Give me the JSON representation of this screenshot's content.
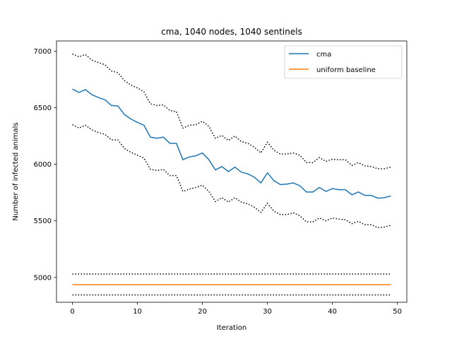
{
  "chart_data": {
    "type": "line",
    "title": "cma, 1040 nodes, 1040 sentinels",
    "xlabel": "Iteration",
    "ylabel": "Number of infected animals",
    "xlim": [
      -2.45,
      51.45
    ],
    "ylim": [
      4780,
      7090
    ],
    "x_ticks": [
      0,
      10,
      20,
      30,
      40,
      50
    ],
    "y_ticks": [
      5000,
      5500,
      6000,
      6500,
      7000
    ],
    "grid": false,
    "legend_position": "top-right",
    "x": [
      0,
      1,
      2,
      3,
      4,
      5,
      6,
      7,
      8,
      9,
      10,
      11,
      12,
      13,
      14,
      15,
      16,
      17,
      18,
      19,
      20,
      21,
      22,
      23,
      24,
      25,
      26,
      27,
      28,
      29,
      30,
      31,
      32,
      33,
      34,
      35,
      36,
      37,
      38,
      39,
      40,
      41,
      42,
      43,
      44,
      45,
      46,
      47,
      48,
      49
    ],
    "series": [
      {
        "name": "cma",
        "color": "#1f77b4",
        "style": "solid",
        "values": [
          6665,
          6635,
          6660,
          6615,
          6590,
          6570,
          6520,
          6515,
          6440,
          6400,
          6370,
          6345,
          6240,
          6230,
          6240,
          6185,
          6185,
          6040,
          6065,
          6075,
          6100,
          6040,
          5950,
          5980,
          5935,
          5975,
          5930,
          5915,
          5885,
          5835,
          5925,
          5855,
          5820,
          5825,
          5835,
          5810,
          5755,
          5755,
          5795,
          5760,
          5785,
          5775,
          5775,
          5730,
          5755,
          5725,
          5725,
          5700,
          5705,
          5720
        ]
      },
      {
        "name": "",
        "color": "#000000",
        "style": "dotted",
        "values": [
          6975,
          6950,
          6970,
          6920,
          6900,
          6880,
          6825,
          6810,
          6740,
          6700,
          6675,
          6640,
          6535,
          6520,
          6525,
          6475,
          6465,
          6320,
          6345,
          6350,
          6380,
          6335,
          6230,
          6255,
          6210,
          6250,
          6200,
          6185,
          6150,
          6100,
          6195,
          6125,
          6090,
          6090,
          6100,
          6080,
          6015,
          6015,
          6060,
          6025,
          6045,
          6040,
          6040,
          5990,
          6015,
          5985,
          5980,
          5960,
          5960,
          5975
        ]
      },
      {
        "name": "",
        "color": "#000000",
        "style": "dotted",
        "values": [
          6350,
          6320,
          6345,
          6305,
          6280,
          6265,
          6215,
          6215,
          6140,
          6105,
          6080,
          6055,
          5955,
          5945,
          5955,
          5900,
          5900,
          5760,
          5780,
          5795,
          5815,
          5760,
          5670,
          5705,
          5665,
          5705,
          5665,
          5650,
          5620,
          5575,
          5655,
          5585,
          5555,
          5555,
          5570,
          5545,
          5490,
          5490,
          5525,
          5500,
          5525,
          5515,
          5510,
          5475,
          5495,
          5465,
          5465,
          5440,
          5445,
          5460
        ]
      },
      {
        "name": "uniform baseline",
        "color": "#ff7f0e",
        "style": "solid",
        "values": [
          4935,
          4935,
          4935,
          4935,
          4935,
          4935,
          4935,
          4935,
          4935,
          4935,
          4935,
          4935,
          4935,
          4935,
          4935,
          4935,
          4935,
          4935,
          4935,
          4935,
          4935,
          4935,
          4935,
          4935,
          4935,
          4935,
          4935,
          4935,
          4935,
          4935,
          4935,
          4935,
          4935,
          4935,
          4935,
          4935,
          4935,
          4935,
          4935,
          4935,
          4935,
          4935,
          4935,
          4935,
          4935,
          4935,
          4935,
          4935,
          4935,
          4935
        ]
      },
      {
        "name": "",
        "color": "#000000",
        "style": "dotted",
        "values": [
          5030,
          5030,
          5030,
          5030,
          5030,
          5030,
          5030,
          5030,
          5030,
          5030,
          5030,
          5030,
          5030,
          5030,
          5030,
          5030,
          5030,
          5030,
          5030,
          5030,
          5030,
          5030,
          5030,
          5030,
          5030,
          5030,
          5030,
          5030,
          5030,
          5030,
          5030,
          5030,
          5030,
          5030,
          5030,
          5030,
          5030,
          5030,
          5030,
          5030,
          5030,
          5030,
          5030,
          5030,
          5030,
          5030,
          5030,
          5030,
          5030,
          5030
        ]
      },
      {
        "name": "",
        "color": "#000000",
        "style": "dotted",
        "values": [
          4845,
          4845,
          4845,
          4845,
          4845,
          4845,
          4845,
          4845,
          4845,
          4845,
          4845,
          4845,
          4845,
          4845,
          4845,
          4845,
          4845,
          4845,
          4845,
          4845,
          4845,
          4845,
          4845,
          4845,
          4845,
          4845,
          4845,
          4845,
          4845,
          4845,
          4845,
          4845,
          4845,
          4845,
          4845,
          4845,
          4845,
          4845,
          4845,
          4845,
          4845,
          4845,
          4845,
          4845,
          4845,
          4845,
          4845,
          4845,
          4845,
          4845
        ]
      }
    ],
    "legend": [
      {
        "label": "cma",
        "color": "#1f77b4"
      },
      {
        "label": "uniform baseline",
        "color": "#ff7f0e"
      }
    ]
  }
}
